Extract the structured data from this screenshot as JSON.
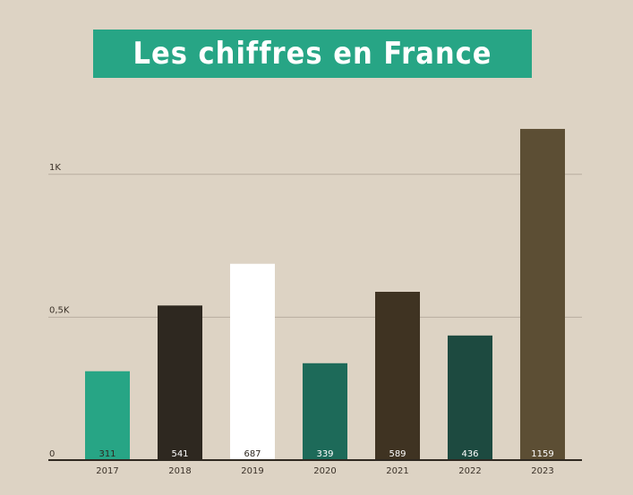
{
  "title": "Les chiffres en France",
  "colors": {
    "background": "#ddd3c4",
    "banner": "#27a585",
    "gridline": "#b8ad9f",
    "axis": "#2e2820"
  },
  "chart_data": {
    "type": "bar",
    "title": "Les chiffres en France",
    "xlabel": "",
    "ylabel": "",
    "categories": [
      "2017",
      "2018",
      "2019",
      "2020",
      "2021",
      "2022",
      "2023"
    ],
    "values": [
      311,
      541,
      687,
      339,
      589,
      436,
      1159
    ],
    "bar_colors": [
      "#27a585",
      "#2e2820",
      "#ffffff",
      "#1d6a59",
      "#3f3322",
      "#1d4a40",
      "#5c4e34"
    ],
    "label_colors": [
      "#2e2820",
      "#ffffff",
      "#2e2820",
      "#ffffff",
      "#ffffff",
      "#ffffff",
      "#ffffff"
    ],
    "data_labels": [
      "311",
      "541",
      "687",
      "339",
      "589",
      "436",
      "1159"
    ],
    "yticks": [
      0,
      500,
      1000
    ],
    "ytick_labels": [
      "0",
      "0,5K",
      "1K"
    ],
    "ylim": [
      0,
      1200
    ],
    "grid": true,
    "legend": "none"
  }
}
